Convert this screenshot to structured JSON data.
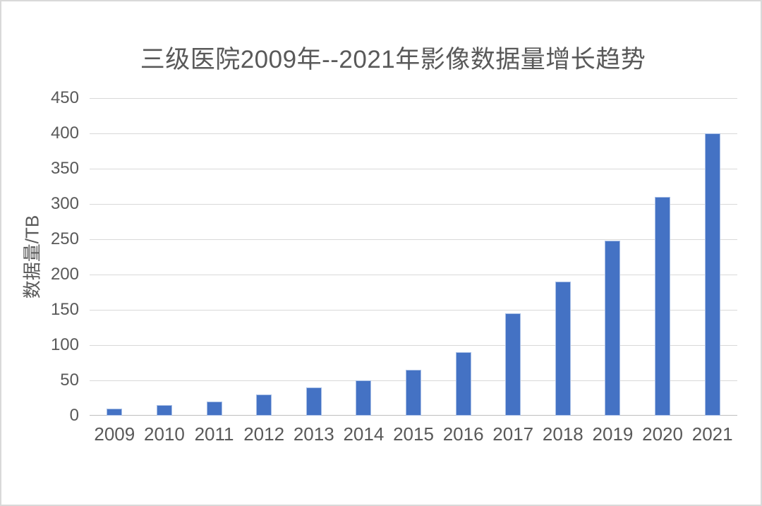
{
  "page": {
    "background": "#ffffff",
    "frame_border_color": "#d9d9d9"
  },
  "chart_data": {
    "type": "bar",
    "title": "三级医院2009年--2021年影像数据量增长趋势",
    "xlabel": "",
    "ylabel": "数据量/TB",
    "categories": [
      "2009",
      "2010",
      "2011",
      "2012",
      "2013",
      "2014",
      "2015",
      "2016",
      "2017",
      "2018",
      "2019",
      "2020",
      "2021"
    ],
    "values": [
      10,
      15,
      20,
      30,
      40,
      50,
      65,
      90,
      145,
      190,
      248,
      310,
      400
    ],
    "ylim": [
      0,
      450
    ],
    "yticks": [
      0,
      50,
      100,
      150,
      200,
      250,
      300,
      350,
      400,
      450
    ],
    "grid": true,
    "legend": "none",
    "bar_color": "#4472C4",
    "bar_edge_color": "#a8bfe6",
    "gridline_color": "#d9d9d9",
    "axis_line_color": "#bfbfbf",
    "text_color": "#595959"
  }
}
